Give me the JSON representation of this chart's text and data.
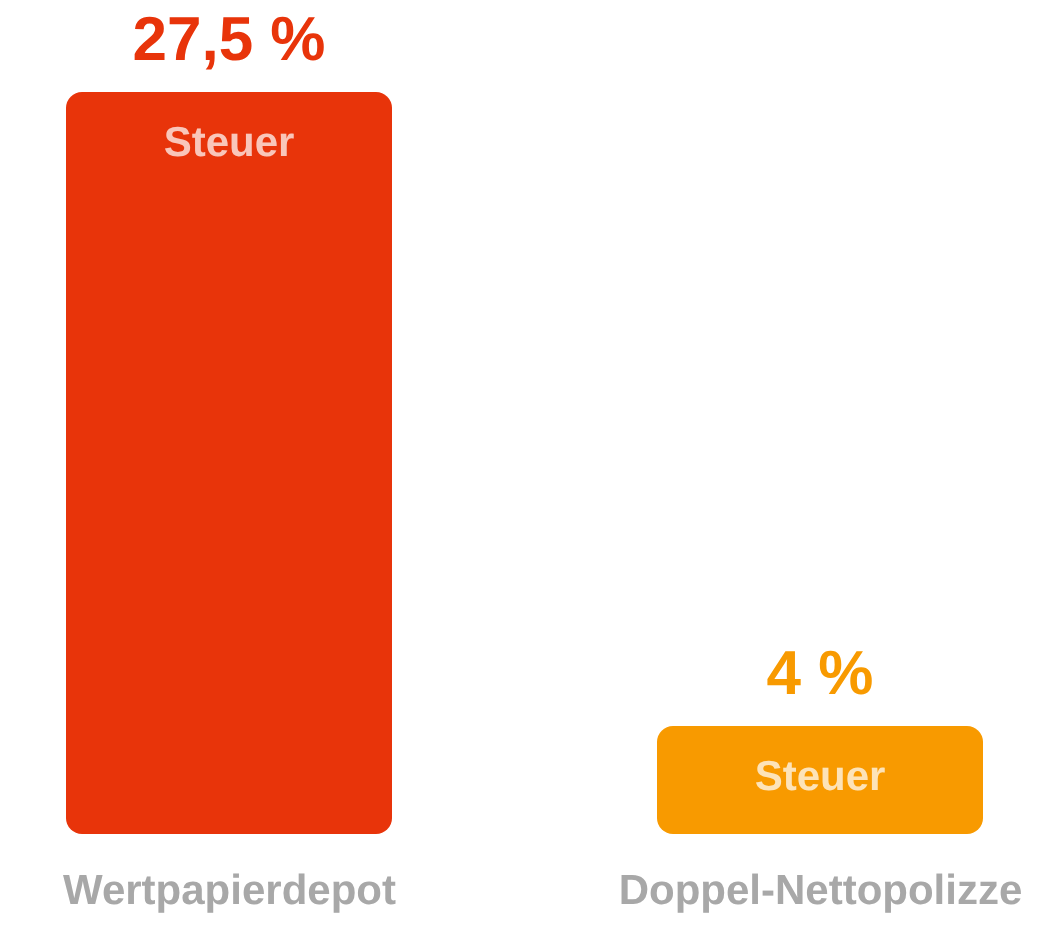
{
  "chart_data": {
    "type": "bar",
    "categories": [
      "Wertpapierdepot",
      "Doppel-Nettopolizze"
    ],
    "series": [
      {
        "name": "Steuer",
        "colors": [
          "#e8340a",
          "#f89a00"
        ],
        "values": [
          27.5,
          4
        ],
        "value_labels": [
          "27,5 %",
          "4 %"
        ]
      }
    ],
    "tick_labels": "x"
  }
}
